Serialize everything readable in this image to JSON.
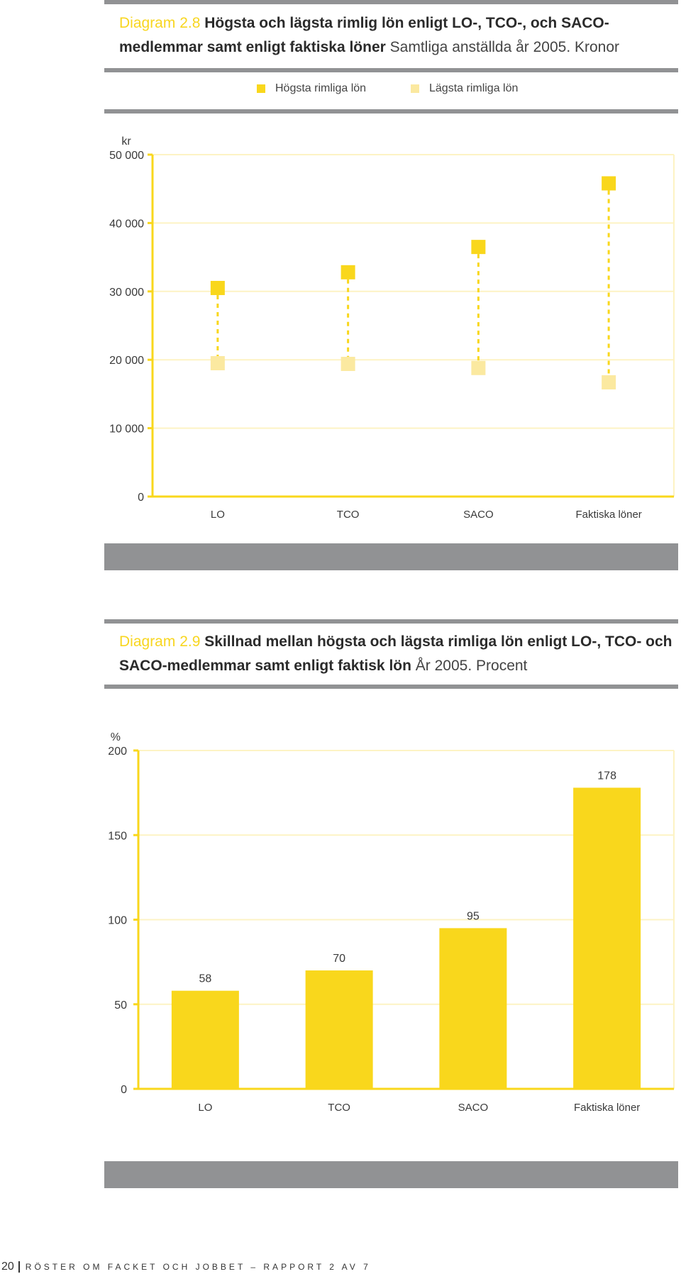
{
  "figure1": {
    "label": "Diagram 2.8",
    "title_bold": "Högsta och lägsta rimlig lön enligt LO-, TCO-, och SACO- medlemmar samt enligt faktiska löner",
    "title_light": "Samtliga anställda år 2005. Kronor",
    "legend": [
      {
        "label": "Högsta rimliga lön",
        "color": "#f9d71c"
      },
      {
        "label": "Lägsta rimliga lön",
        "color": "#fbe9a0"
      }
    ]
  },
  "figure2": {
    "label": "Diagram 2.9",
    "title_bold": "Skillnad mellan högsta och lägsta rimliga lön enligt LO-, TCO- och SACO-medlemmar samt enligt faktisk lön",
    "title_light": "År 2005. Procent"
  },
  "footer": {
    "page_number": "20",
    "running_title": "RÖSTER OM FACKET OCH JOBBET – RAPPORT 2 AV 7"
  },
  "colors": {
    "accent": "#f9d71c",
    "accent_light": "#fbe9a0",
    "rule_gray": "#919294",
    "grid": "#fdf3c4"
  },
  "chart_data": [
    {
      "type": "scatter",
      "title": "Högsta och lägsta rimlig lön enligt LO-, TCO-, och SACO- medlemmar samt enligt faktiska löner",
      "ylabel": "kr",
      "ylim": [
        0,
        50000
      ],
      "yticks": [
        "0",
        "10 000",
        "20 000",
        "30 000",
        "40 000",
        "50 000"
      ],
      "ytick_values": [
        0,
        10000,
        20000,
        30000,
        40000,
        50000
      ],
      "categories": [
        "LO",
        "TCO",
        "SACO",
        "Faktiska löner"
      ],
      "series": [
        {
          "name": "Högsta rimliga lön",
          "values": [
            30500,
            32800,
            36500,
            45800
          ],
          "color": "#f9d71c"
        },
        {
          "name": "Lägsta rimliga lön",
          "values": [
            19500,
            19400,
            18800,
            16700
          ],
          "color": "#fbe9a0"
        }
      ],
      "grid": true,
      "legend": "top-center"
    },
    {
      "type": "bar",
      "title": "Skillnad mellan högsta och lägsta rimliga lön enligt LO-, TCO- och SACO-medlemmar samt enligt faktisk lön",
      "ylabel": "%",
      "ylim": [
        0,
        200
      ],
      "yticks": [
        "0",
        "50",
        "100",
        "150",
        "200"
      ],
      "ytick_values": [
        0,
        50,
        100,
        150,
        200
      ],
      "categories": [
        "LO",
        "TCO",
        "SACO",
        "Faktiska löner"
      ],
      "values": [
        58,
        70,
        95,
        178
      ],
      "data_labels": [
        "58",
        "70",
        "95",
        "178"
      ],
      "color": "#f9d71c",
      "grid": true
    }
  ]
}
